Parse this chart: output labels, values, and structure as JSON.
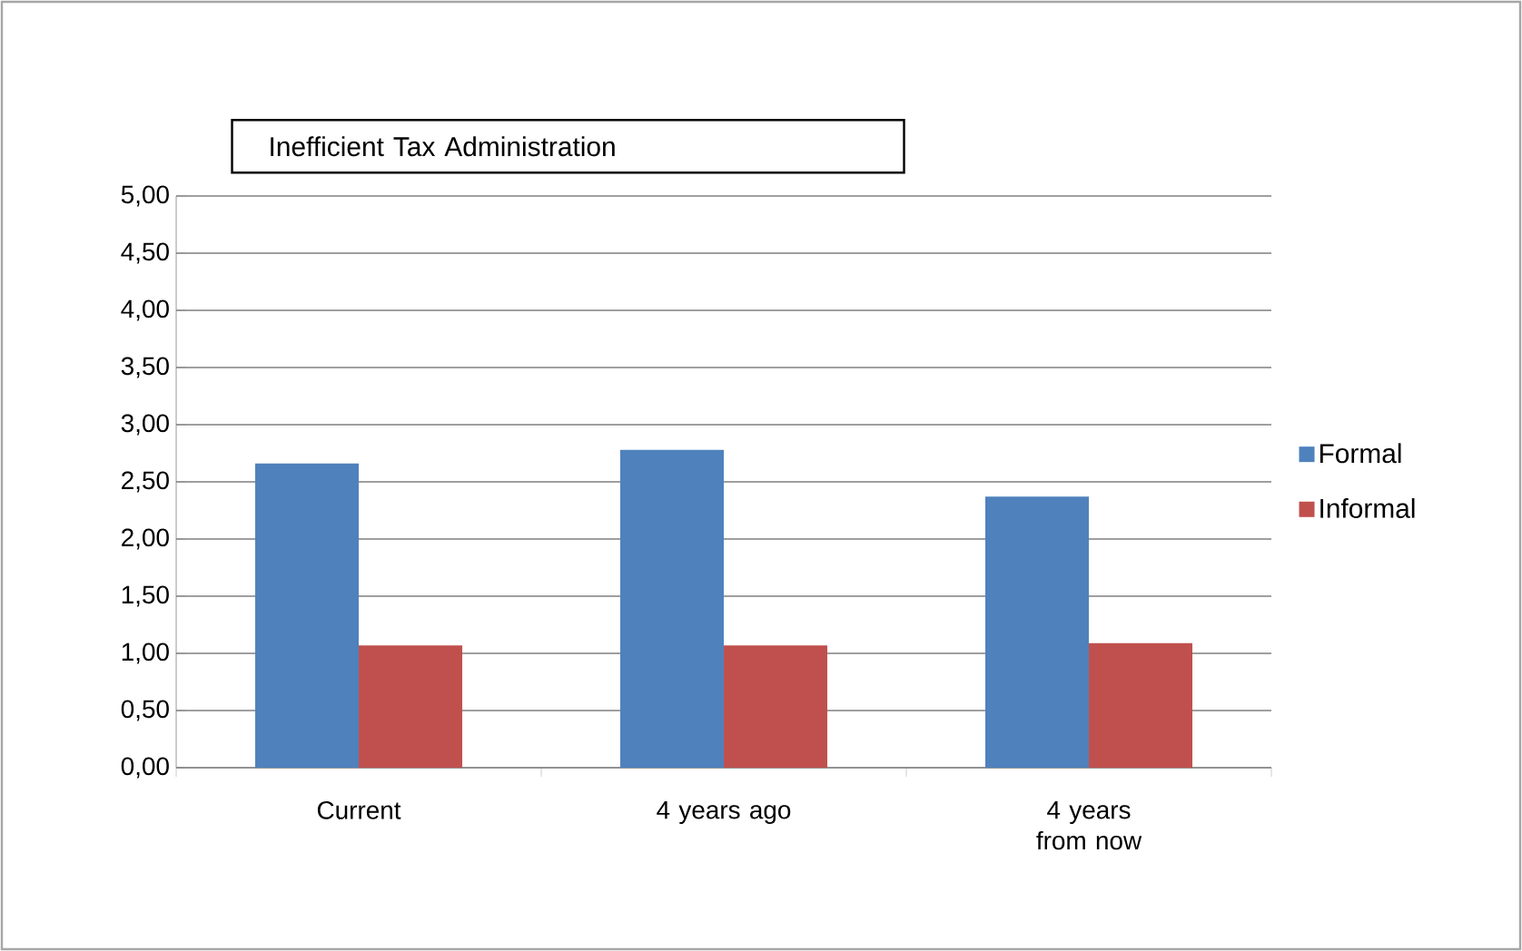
{
  "chart_data": {
    "type": "bar",
    "title": "Inefficient Tax Administration",
    "categories": [
      "Current",
      "4 years ago",
      "4 years from now"
    ],
    "series": [
      {
        "name": "Formal",
        "color": "#4f81bd",
        "values": [
          2.66,
          2.78,
          2.37
        ]
      },
      {
        "name": "Informal",
        "color": "#c0504d",
        "values": [
          1.07,
          1.07,
          1.09
        ]
      }
    ],
    "ylim": [
      0,
      5
    ],
    "yticks": [
      {
        "value": 0,
        "label": "0,00"
      },
      {
        "value": 0.5,
        "label": "0,50"
      },
      {
        "value": 1,
        "label": "1,00"
      },
      {
        "value": 1.5,
        "label": "1,50"
      },
      {
        "value": 2,
        "label": "2,00"
      },
      {
        "value": 2.5,
        "label": "2,50"
      },
      {
        "value": 3,
        "label": "3,00"
      },
      {
        "value": 3.5,
        "label": "3,50"
      },
      {
        "value": 4,
        "label": "4,00"
      },
      {
        "value": 4.5,
        "label": "4,50"
      },
      {
        "value": 5,
        "label": "5,00"
      }
    ],
    "grid": "y",
    "legend": "right"
  }
}
